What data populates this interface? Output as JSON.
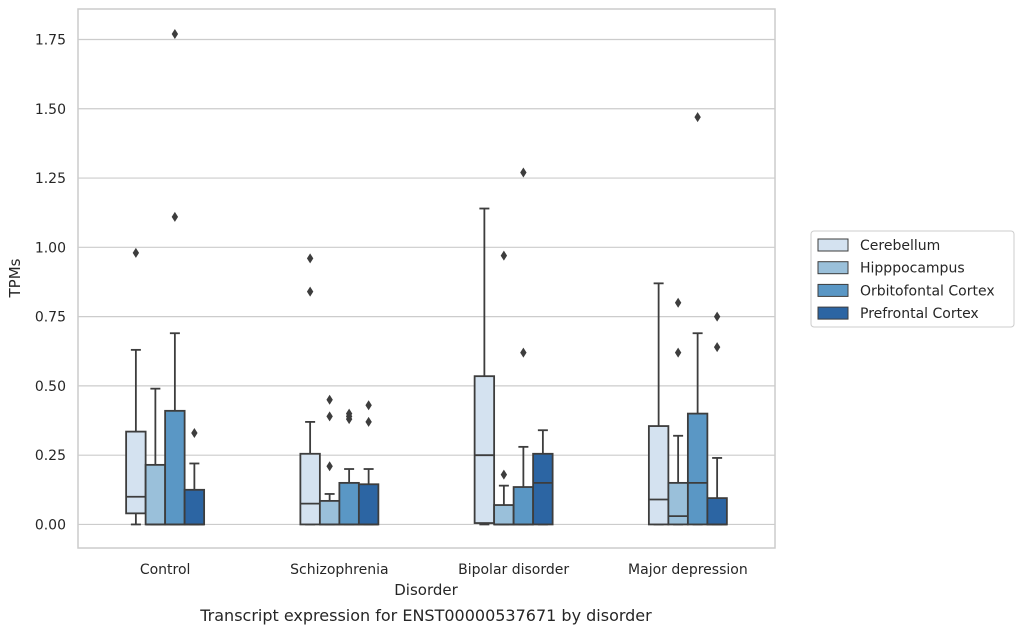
{
  "chart_data": {
    "type": "box",
    "caption": "Transcript expression for ENST00000537671 by disorder",
    "xlabel": "Disorder",
    "ylabel": "TPMs",
    "ylim": [
      -0.085,
      1.86
    ],
    "yticks": [
      "0.00",
      "0.25",
      "0.50",
      "0.75",
      "1.00",
      "1.25",
      "1.50",
      "1.75"
    ],
    "grid": "horizontal",
    "legend_position": "right",
    "categories": [
      "Control",
      "Schizophrenia",
      "Bipolar disorder",
      "Major depression"
    ],
    "series": [
      {
        "name": "Cerebellum",
        "color": "#d4e2f0",
        "boxes": [
          {
            "whislo": 0.0,
            "q1": 0.04,
            "med": 0.1,
            "q3": 0.335,
            "whishi": 0.63,
            "fliers": [
              0.98
            ]
          },
          {
            "whislo": 0.0,
            "q1": 0.0,
            "med": 0.075,
            "q3": 0.255,
            "whishi": 0.37,
            "fliers": [
              0.84,
              0.96
            ]
          },
          {
            "whislo": 0.0,
            "q1": 0.005,
            "med": 0.25,
            "q3": 0.535,
            "whishi": 1.14,
            "fliers": []
          },
          {
            "whislo": 0.0,
            "q1": 0.0,
            "med": 0.09,
            "q3": 0.355,
            "whishi": 0.87,
            "fliers": []
          }
        ]
      },
      {
        "name": "Hipppocampus",
        "color": "#9ac0da",
        "boxes": [
          {
            "whislo": 0.0,
            "q1": 0.0,
            "med": 0.0,
            "q3": 0.215,
            "whishi": 0.49,
            "fliers": []
          },
          {
            "whislo": 0.0,
            "q1": 0.0,
            "med": 0.0,
            "q3": 0.085,
            "whishi": 0.11,
            "fliers": [
              0.21,
              0.39,
              0.45
            ]
          },
          {
            "whislo": 0.0,
            "q1": 0.0,
            "med": 0.0,
            "q3": 0.07,
            "whishi": 0.14,
            "fliers": [
              0.18,
              0.97
            ]
          },
          {
            "whislo": 0.0,
            "q1": 0.0,
            "med": 0.03,
            "q3": 0.15,
            "whishi": 0.32,
            "fliers": [
              0.62,
              0.8
            ]
          }
        ]
      },
      {
        "name": "Orbitofontal Cortex",
        "color": "#5a97c5",
        "boxes": [
          {
            "whislo": 0.0,
            "q1": 0.0,
            "med": 0.0,
            "q3": 0.41,
            "whishi": 0.69,
            "fliers": [
              1.11,
              1.77
            ]
          },
          {
            "whislo": 0.0,
            "q1": 0.0,
            "med": 0.0,
            "q3": 0.15,
            "whishi": 0.2,
            "fliers": [
              0.38,
              0.39,
              0.4
            ]
          },
          {
            "whislo": 0.0,
            "q1": 0.0,
            "med": 0.0,
            "q3": 0.135,
            "whishi": 0.28,
            "fliers": [
              0.62,
              1.27
            ]
          },
          {
            "whislo": 0.0,
            "q1": 0.0,
            "med": 0.15,
            "q3": 0.4,
            "whishi": 0.69,
            "fliers": [
              1.47
            ]
          }
        ]
      },
      {
        "name": "Prefrontal Cortex",
        "color": "#2c65a3",
        "boxes": [
          {
            "whislo": 0.0,
            "q1": 0.0,
            "med": 0.0,
            "q3": 0.125,
            "whishi": 0.22,
            "fliers": [
              0.33
            ]
          },
          {
            "whislo": 0.0,
            "q1": 0.0,
            "med": 0.0,
            "q3": 0.145,
            "whishi": 0.2,
            "fliers": [
              0.37,
              0.43
            ]
          },
          {
            "whislo": 0.0,
            "q1": 0.0,
            "med": 0.15,
            "q3": 0.255,
            "whishi": 0.34,
            "fliers": []
          },
          {
            "whislo": 0.0,
            "q1": 0.0,
            "med": 0.0,
            "q3": 0.095,
            "whishi": 0.24,
            "fliers": [
              0.64,
              0.75
            ]
          }
        ]
      }
    ]
  }
}
